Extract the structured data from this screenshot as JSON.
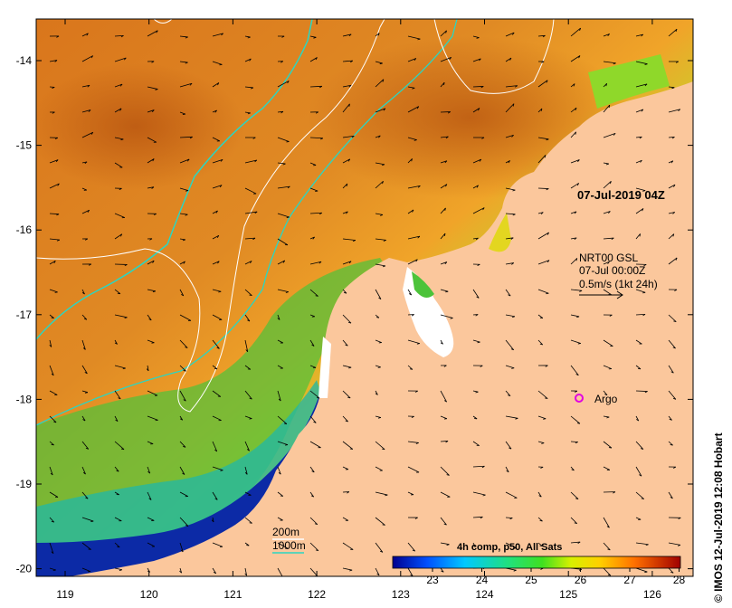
{
  "map": {
    "image_date": "07-Jul-2019 04Z",
    "credit": "© IMOS 12-Jul-2019 12:08 Hobart",
    "current_info": [
      "NRT00 GSL",
      "07-Jul 00:00Z",
      "0.5m/s (1kt 24h)"
    ],
    "argo_label": "Argo",
    "legend_200m": "200m",
    "legend_1000m": "1000m",
    "lon_ticks": [
      "119",
      "120",
      "121",
      "122",
      "123",
      "124",
      "125",
      "126"
    ],
    "lat_ticks": [
      "-14",
      "-15",
      "-16",
      "-17",
      "-18",
      "-19",
      "-20"
    ],
    "colorbar": {
      "title": "4h comp, p50, All Sats",
      "ticks": [
        "23",
        "24",
        "25",
        "26",
        "27",
        "28"
      ]
    },
    "colors": {
      "land": "#fbc79c",
      "warm": "#d9741a",
      "cool": "#0b1a94",
      "isobath_200m": "#ffffff",
      "isobath_1000m": "#2ad6c2",
      "argo": "#e100e1"
    }
  }
}
